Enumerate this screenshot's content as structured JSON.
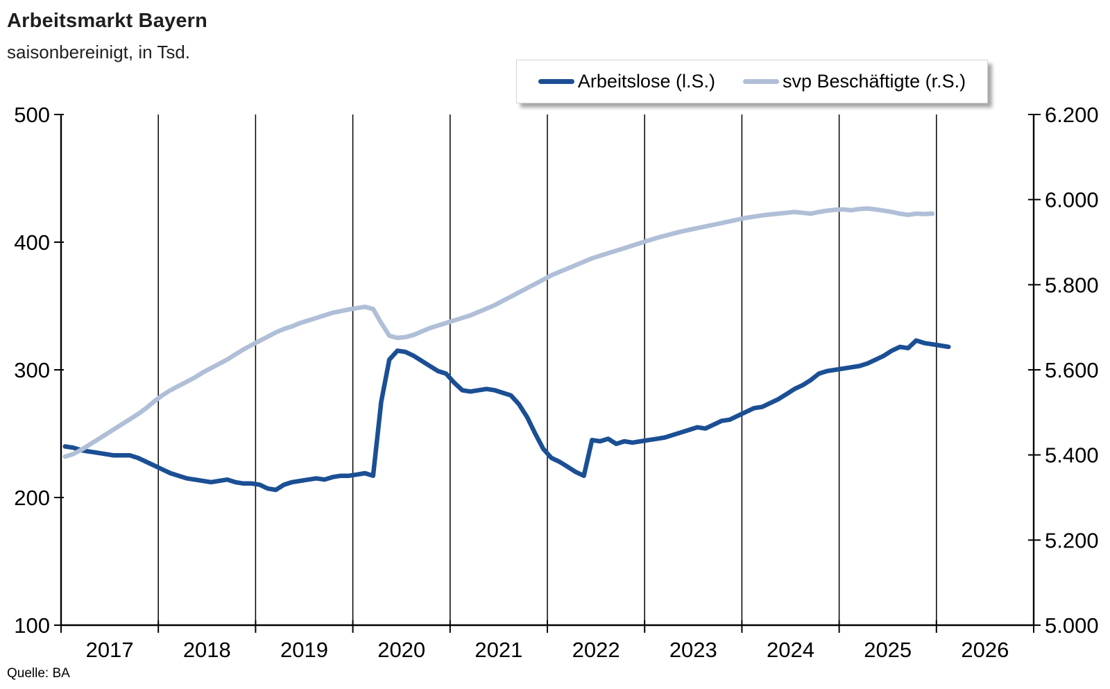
{
  "header": {
    "title": "Arbeitsmarkt Bayern",
    "subtitle": "saisonbereinigt, in Tsd."
  },
  "source": "Quelle: BA",
  "legend": {
    "items": [
      {
        "label": "Arbeitslose (l.S.)"
      },
      {
        "label": "svp Beschäftigte (r.S.)"
      }
    ]
  },
  "chart_data": {
    "type": "line",
    "title": "Arbeitsmarkt Bayern",
    "subtitle": "saisonbereinigt, in Tsd.",
    "source": "Quelle: BA",
    "grid": "vertical-only",
    "legend_position": "top-center",
    "x_axis": {
      "start_year": 2017,
      "years": 10,
      "unit": "monthly",
      "year_labels": [
        "2017",
        "2018",
        "2019",
        "2020",
        "2021",
        "2022",
        "2023",
        "2024",
        "2025",
        "2026"
      ]
    },
    "left_axis": {
      "min": 100,
      "max": 500,
      "ticks": [
        {
          "label": "500",
          "value": 500
        },
        {
          "label": "400",
          "value": 400
        },
        {
          "label": "300",
          "value": 300
        },
        {
          "label": "200",
          "value": 200
        },
        {
          "label": "100",
          "value": 100
        }
      ]
    },
    "right_axis": {
      "min": 5000,
      "max": 6200,
      "ticks": [
        {
          "label": "6.200",
          "value": 6200
        },
        {
          "label": "6.000",
          "value": 6000
        },
        {
          "label": "5.800",
          "value": 5800
        },
        {
          "label": "5.600",
          "value": 5600
        },
        {
          "label": "5.400",
          "value": 5400
        },
        {
          "label": "5.200",
          "value": 5200
        },
        {
          "label": "5.000",
          "value": 5000
        }
      ]
    },
    "series": [
      {
        "name": "Arbeitslose",
        "legend_label": "Arbeitslose (l.S.)",
        "axis": "left",
        "color": "#1b4f94",
        "first_month": "2017-01",
        "values": [
          240,
          239,
          237,
          236,
          235,
          234,
          233,
          233,
          233,
          231,
          228,
          225,
          222,
          219,
          217,
          215,
          214,
          213,
          212,
          213,
          214,
          212,
          211,
          211,
          210,
          207,
          206,
          210,
          212,
          213,
          214,
          215,
          214,
          216,
          217,
          217,
          218,
          219,
          217,
          275,
          308,
          315,
          314,
          311,
          307,
          303,
          299,
          297,
          290,
          284,
          283,
          284,
          285,
          284,
          282,
          280,
          273,
          263,
          250,
          238,
          231,
          228,
          224,
          220,
          217,
          245,
          244,
          246,
          242,
          244,
          243,
          244,
          245,
          246,
          247,
          249,
          251,
          253,
          255,
          254,
          257,
          260,
          261,
          264,
          267,
          270,
          271,
          274,
          277,
          281,
          285,
          288,
          292,
          297,
          299,
          300,
          301,
          302,
          303,
          305,
          308,
          311,
          315,
          318,
          317,
          323,
          321,
          320,
          319,
          318
        ]
      },
      {
        "name": "svp Beschäftigte",
        "legend_label": "svp Beschäftigte (r.S.)",
        "axis": "right",
        "color": "#b0bfd7",
        "first_month": "2017-01",
        "values": [
          5396,
          5402,
          5412,
          5424,
          5436,
          5448,
          5460,
          5472,
          5484,
          5496,
          5510,
          5526,
          5540,
          5552,
          5562,
          5572,
          5582,
          5594,
          5604,
          5614,
          5624,
          5636,
          5648,
          5658,
          5668,
          5678,
          5688,
          5696,
          5702,
          5710,
          5716,
          5722,
          5728,
          5734,
          5738,
          5742,
          5745,
          5748,
          5743,
          5710,
          5680,
          5675,
          5677,
          5682,
          5690,
          5698,
          5704,
          5710,
          5716,
          5722,
          5728,
          5736,
          5744,
          5752,
          5762,
          5772,
          5782,
          5792,
          5802,
          5812,
          5822,
          5830,
          5838,
          5846,
          5854,
          5862,
          5868,
          5874,
          5880,
          5886,
          5892,
          5898,
          5904,
          5910,
          5915,
          5920,
          5925,
          5929,
          5933,
          5937,
          5941,
          5945,
          5949,
          5953,
          5957,
          5960,
          5963,
          5965,
          5967,
          5969,
          5971,
          5969,
          5967,
          5971,
          5974,
          5976,
          5977,
          5975,
          5978,
          5979,
          5977,
          5974,
          5971,
          5967,
          5964,
          5967,
          5966,
          5967
        ]
      }
    ]
  }
}
